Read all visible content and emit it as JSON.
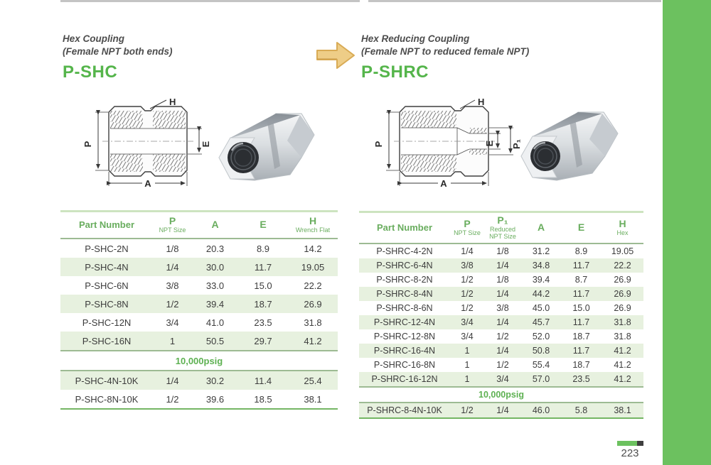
{
  "page": {
    "number": "223"
  },
  "arrow_color": "#eecd87",
  "accent_green": "#5cb550",
  "row_shade_green": "#e7f1df",
  "left": {
    "title_line1": "Hex Coupling",
    "title_line2": "(Female NPT both ends)",
    "code": "P-SHC",
    "diagram_labels": {
      "h": "H",
      "p": "P",
      "e": "E",
      "a": "A"
    },
    "table": {
      "headers": [
        {
          "main": "Part Number",
          "sub": ""
        },
        {
          "main": "P",
          "sub": "NPT Size"
        },
        {
          "main": "A",
          "sub": ""
        },
        {
          "main": "E",
          "sub": ""
        },
        {
          "main": "H",
          "sub": "Wrench Flat"
        }
      ],
      "rows": [
        {
          "cells": [
            "P-SHC-2N",
            "1/8",
            "20.3",
            "8.9",
            "14.2"
          ]
        },
        {
          "cells": [
            "P-SHC-4N",
            "1/4",
            "30.0",
            "11.7",
            "19.05"
          ]
        },
        {
          "cells": [
            "P-SHC-6N",
            "3/8",
            "33.0",
            "15.0",
            "22.2"
          ]
        },
        {
          "cells": [
            "P-SHC-8N",
            "1/2",
            "39.4",
            "18.7",
            "26.9"
          ]
        },
        {
          "cells": [
            "P-SHC-12N",
            "3/4",
            "41.0",
            "23.5",
            "31.8"
          ]
        },
        {
          "cells": [
            "P-SHC-16N",
            "1",
            "50.5",
            "29.7",
            "41.2"
          ]
        },
        {
          "label": "10,000psig"
        },
        {
          "cells": [
            "P-SHC-4N-10K",
            "1/4",
            "30.2",
            "11.4",
            "25.4"
          ]
        },
        {
          "cells": [
            "P-SHC-8N-10K",
            "1/2",
            "39.6",
            "18.5",
            "38.1"
          ]
        }
      ]
    }
  },
  "right": {
    "title_line1": "Hex Reducing Coupling",
    "title_line2": "(Female NPT to reduced female NPT)",
    "code": "P-SHRC",
    "diagram_labels": {
      "h": "H",
      "p": "P",
      "e": "E",
      "p1": "P₁",
      "a": "A"
    },
    "table": {
      "headers": [
        {
          "main": "Part Number",
          "sub": ""
        },
        {
          "main": "P",
          "sub": "NPT Size"
        },
        {
          "main": "P₁",
          "sub": "Reduced NPT Size"
        },
        {
          "main": "A",
          "sub": ""
        },
        {
          "main": "E",
          "sub": ""
        },
        {
          "main": "H",
          "sub": "Hex"
        }
      ],
      "rows": [
        {
          "cells": [
            "P-SHRC-4-2N",
            "1/4",
            "1/8",
            "31.2",
            "8.9",
            "19.05"
          ]
        },
        {
          "cells": [
            "P-SHRC-6-4N",
            "3/8",
            "1/4",
            "34.8",
            "11.7",
            "22.2"
          ]
        },
        {
          "cells": [
            "P-SHRC-8-2N",
            "1/2",
            "1/8",
            "39.4",
            "8.7",
            "26.9"
          ]
        },
        {
          "cells": [
            "P-SHRC-8-4N",
            "1/2",
            "1/4",
            "44.2",
            "11.7",
            "26.9"
          ]
        },
        {
          "cells": [
            "P-SHRC-8-6N",
            "1/2",
            "3/8",
            "45.0",
            "15.0",
            "26.9"
          ]
        },
        {
          "cells": [
            "P-SHRC-12-4N",
            "3/4",
            "1/4",
            "45.7",
            "11.7",
            "31.8"
          ]
        },
        {
          "cells": [
            "P-SHRC-12-8N",
            "3/4",
            "1/2",
            "52.0",
            "18.7",
            "31.8"
          ]
        },
        {
          "cells": [
            "P-SHRC-16-4N",
            "1",
            "1/4",
            "50.8",
            "11.7",
            "41.2"
          ]
        },
        {
          "cells": [
            "P-SHRC-16-8N",
            "1",
            "1/2",
            "55.4",
            "18.7",
            "41.2"
          ]
        },
        {
          "cells": [
            "P-SHRC-16-12N",
            "1",
            "3/4",
            "57.0",
            "23.5",
            "41.2"
          ]
        },
        {
          "label": "10,000psig"
        },
        {
          "cells": [
            "P-SHRC-8-4N-10K",
            "1/2",
            "1/4",
            "46.0",
            "5.8",
            "38.1"
          ]
        }
      ]
    }
  }
}
